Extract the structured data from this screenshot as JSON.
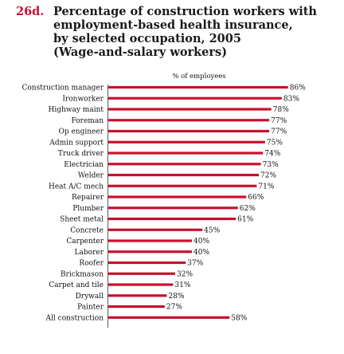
{
  "header": {
    "number": "26d.",
    "title_lines": [
      "Percentage of construction workers with",
      "employment-based health insurance,",
      "by selected occupation, 2005",
      "(Wage-and-salary workers)"
    ]
  },
  "colors": {
    "bar": "#c8102e",
    "title_number": "#c8102e"
  },
  "chart_data": {
    "type": "bar",
    "orientation": "horizontal",
    "unit_label": "% of employees",
    "categories": [
      "Construction manager",
      "Ironworker",
      "Highway maint",
      "Foreman",
      "Op engineer",
      "Admin support",
      "Truck driver",
      "Electrician",
      "Welder",
      "Heat A/C mech",
      "Repairer",
      "Plumber",
      "Sheet metal",
      "Concrete",
      "Carpenter",
      "Laborer",
      "Roofer",
      "Brickmason",
      "Carpet and tile",
      "Drywall",
      "Painter",
      "All construction"
    ],
    "values": [
      86,
      83,
      78,
      77,
      77,
      75,
      74,
      73,
      72,
      71,
      66,
      62,
      61,
      45,
      40,
      40,
      37,
      32,
      31,
      28,
      27,
      58
    ],
    "value_labels": [
      "86%",
      "83%",
      "78%",
      "77%",
      "77%",
      "75%",
      "74%",
      "73%",
      "72%",
      "71%",
      "66%",
      "62%",
      "61%",
      "45%",
      "40%",
      "40%",
      "37%",
      "32%",
      "31%",
      "28%",
      "27%",
      "58%"
    ],
    "xlim": [
      0,
      100
    ],
    "grid": false,
    "legend": "none"
  }
}
